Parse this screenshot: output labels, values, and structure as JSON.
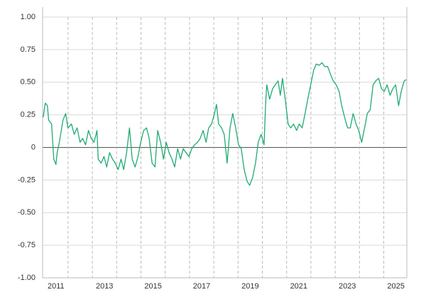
{
  "chart_data": {
    "type": "line",
    "x": [
      2010.97,
      2011.06,
      2011.15,
      2011.2,
      2011.32,
      2011.41,
      2011.5,
      2011.55,
      2011.64,
      2011.79,
      2011.9,
      2011.99,
      2012.14,
      2012.25,
      2012.37,
      2012.49,
      2012.6,
      2012.72,
      2012.84,
      2012.95,
      2013.07,
      2013.19,
      2013.24,
      2013.36,
      2013.48,
      2013.59,
      2013.71,
      2013.83,
      2013.94,
      2014.06,
      2014.18,
      2014.29,
      2014.41,
      2014.53,
      2014.64,
      2014.76,
      2014.88,
      2014.99,
      2015.11,
      2015.23,
      2015.34,
      2015.46,
      2015.58,
      2015.69,
      2015.81,
      2015.93,
      2016.04,
      2016.16,
      2016.28,
      2016.39,
      2016.51,
      2016.63,
      2016.74,
      2016.86,
      2016.98,
      2017.09,
      2017.21,
      2017.33,
      2017.44,
      2017.56,
      2017.68,
      2017.79,
      2017.91,
      2018.03,
      2018.11,
      2018.2,
      2018.32,
      2018.43,
      2018.55,
      2018.67,
      2018.78,
      2018.9,
      2019.02,
      2019.13,
      2019.25,
      2019.37,
      2019.48,
      2019.6,
      2019.72,
      2019.83,
      2019.95,
      2020.07,
      2020.13,
      2020.18,
      2020.3,
      2020.42,
      2020.53,
      2020.65,
      2020.74,
      2020.83,
      2020.94,
      2021.06,
      2021.17,
      2021.29,
      2021.41,
      2021.52,
      2021.64,
      2021.76,
      2021.87,
      2021.99,
      2022.11,
      2022.22,
      2022.34,
      2022.46,
      2022.57,
      2022.69,
      2022.81,
      2022.92,
      2023.04,
      2023.16,
      2023.27,
      2023.39,
      2023.51,
      2023.62,
      2023.74,
      2023.86,
      2023.97,
      2024.09,
      2024.21,
      2024.32,
      2024.44,
      2024.56,
      2024.67,
      2024.79,
      2024.91,
      2025.02,
      2025.14,
      2025.26,
      2025.37,
      2025.49,
      2025.61,
      2025.72,
      2025.84,
      2025.93
    ],
    "series": [
      {
        "color": "#1fab72",
        "values": [
          0.23,
          0.34,
          0.32,
          0.21,
          0.18,
          -0.09,
          -0.13,
          -0.04,
          0.04,
          0.21,
          0.26,
          0.15,
          0.18,
          0.1,
          0.15,
          0.04,
          0.07,
          0.02,
          0.13,
          0.07,
          0.04,
          0.13,
          -0.09,
          -0.12,
          -0.07,
          -0.15,
          -0.04,
          -0.09,
          -0.12,
          -0.17,
          -0.09,
          -0.17,
          -0.04,
          0.15,
          -0.09,
          -0.15,
          -0.07,
          0.04,
          0.13,
          0.15,
          0.07,
          -0.12,
          -0.15,
          0.13,
          0.04,
          -0.09,
          0.04,
          -0.04,
          -0.09,
          -0.15,
          -0.01,
          -0.09,
          -0.01,
          -0.04,
          -0.07,
          -0.01,
          0.02,
          0.04,
          0.07,
          0.13,
          0.04,
          0.15,
          0.18,
          0.26,
          0.33,
          0.18,
          0.15,
          0.1,
          -0.12,
          0.15,
          0.26,
          0.15,
          0.02,
          -0.01,
          -0.17,
          -0.26,
          -0.29,
          -0.23,
          -0.12,
          0.04,
          0.1,
          0.02,
          0.32,
          0.48,
          0.37,
          0.45,
          0.48,
          0.51,
          0.4,
          0.53,
          0.37,
          0.18,
          0.15,
          0.18,
          0.13,
          0.18,
          0.15,
          0.26,
          0.37,
          0.48,
          0.59,
          0.64,
          0.63,
          0.65,
          0.62,
          0.62,
          0.56,
          0.51,
          0.48,
          0.43,
          0.32,
          0.23,
          0.15,
          0.15,
          0.26,
          0.18,
          0.13,
          0.04,
          0.15,
          0.26,
          0.29,
          0.48,
          0.51,
          0.53,
          0.45,
          0.43,
          0.48,
          0.4,
          0.45,
          0.48,
          0.32,
          0.43,
          0.51,
          0.52
        ]
      }
    ],
    "xlim": [
      2010.95,
      2025.95
    ],
    "xticks": [
      {
        "value": 2011.5,
        "label": "2011"
      },
      {
        "value": 2013.5,
        "label": "2013"
      },
      {
        "value": 2015.5,
        "label": "2015"
      },
      {
        "value": 2017.5,
        "label": "2017"
      },
      {
        "value": 2019.5,
        "label": "2019"
      },
      {
        "value": 2021.5,
        "label": "2021"
      },
      {
        "value": 2023.5,
        "label": "2023"
      },
      {
        "value": 2025.5,
        "label": "2025"
      }
    ],
    "xgrid": [
      2012,
      2013,
      2014,
      2015,
      2016,
      2017,
      2018,
      2019,
      2020,
      2021,
      2022,
      2023,
      2024,
      2025
    ],
    "ylim": [
      -1,
      1
    ],
    "yticks": [
      {
        "value": 1,
        "label": "1.00"
      },
      0.75,
      {
        "value": 0.5,
        "label": "0.50"
      },
      0.25,
      0,
      -0.25,
      {
        "value": -0.5,
        "label": "-0.50"
      },
      -0.75,
      {
        "value": -1,
        "label": "-1.00"
      }
    ],
    "grid": true
  }
}
